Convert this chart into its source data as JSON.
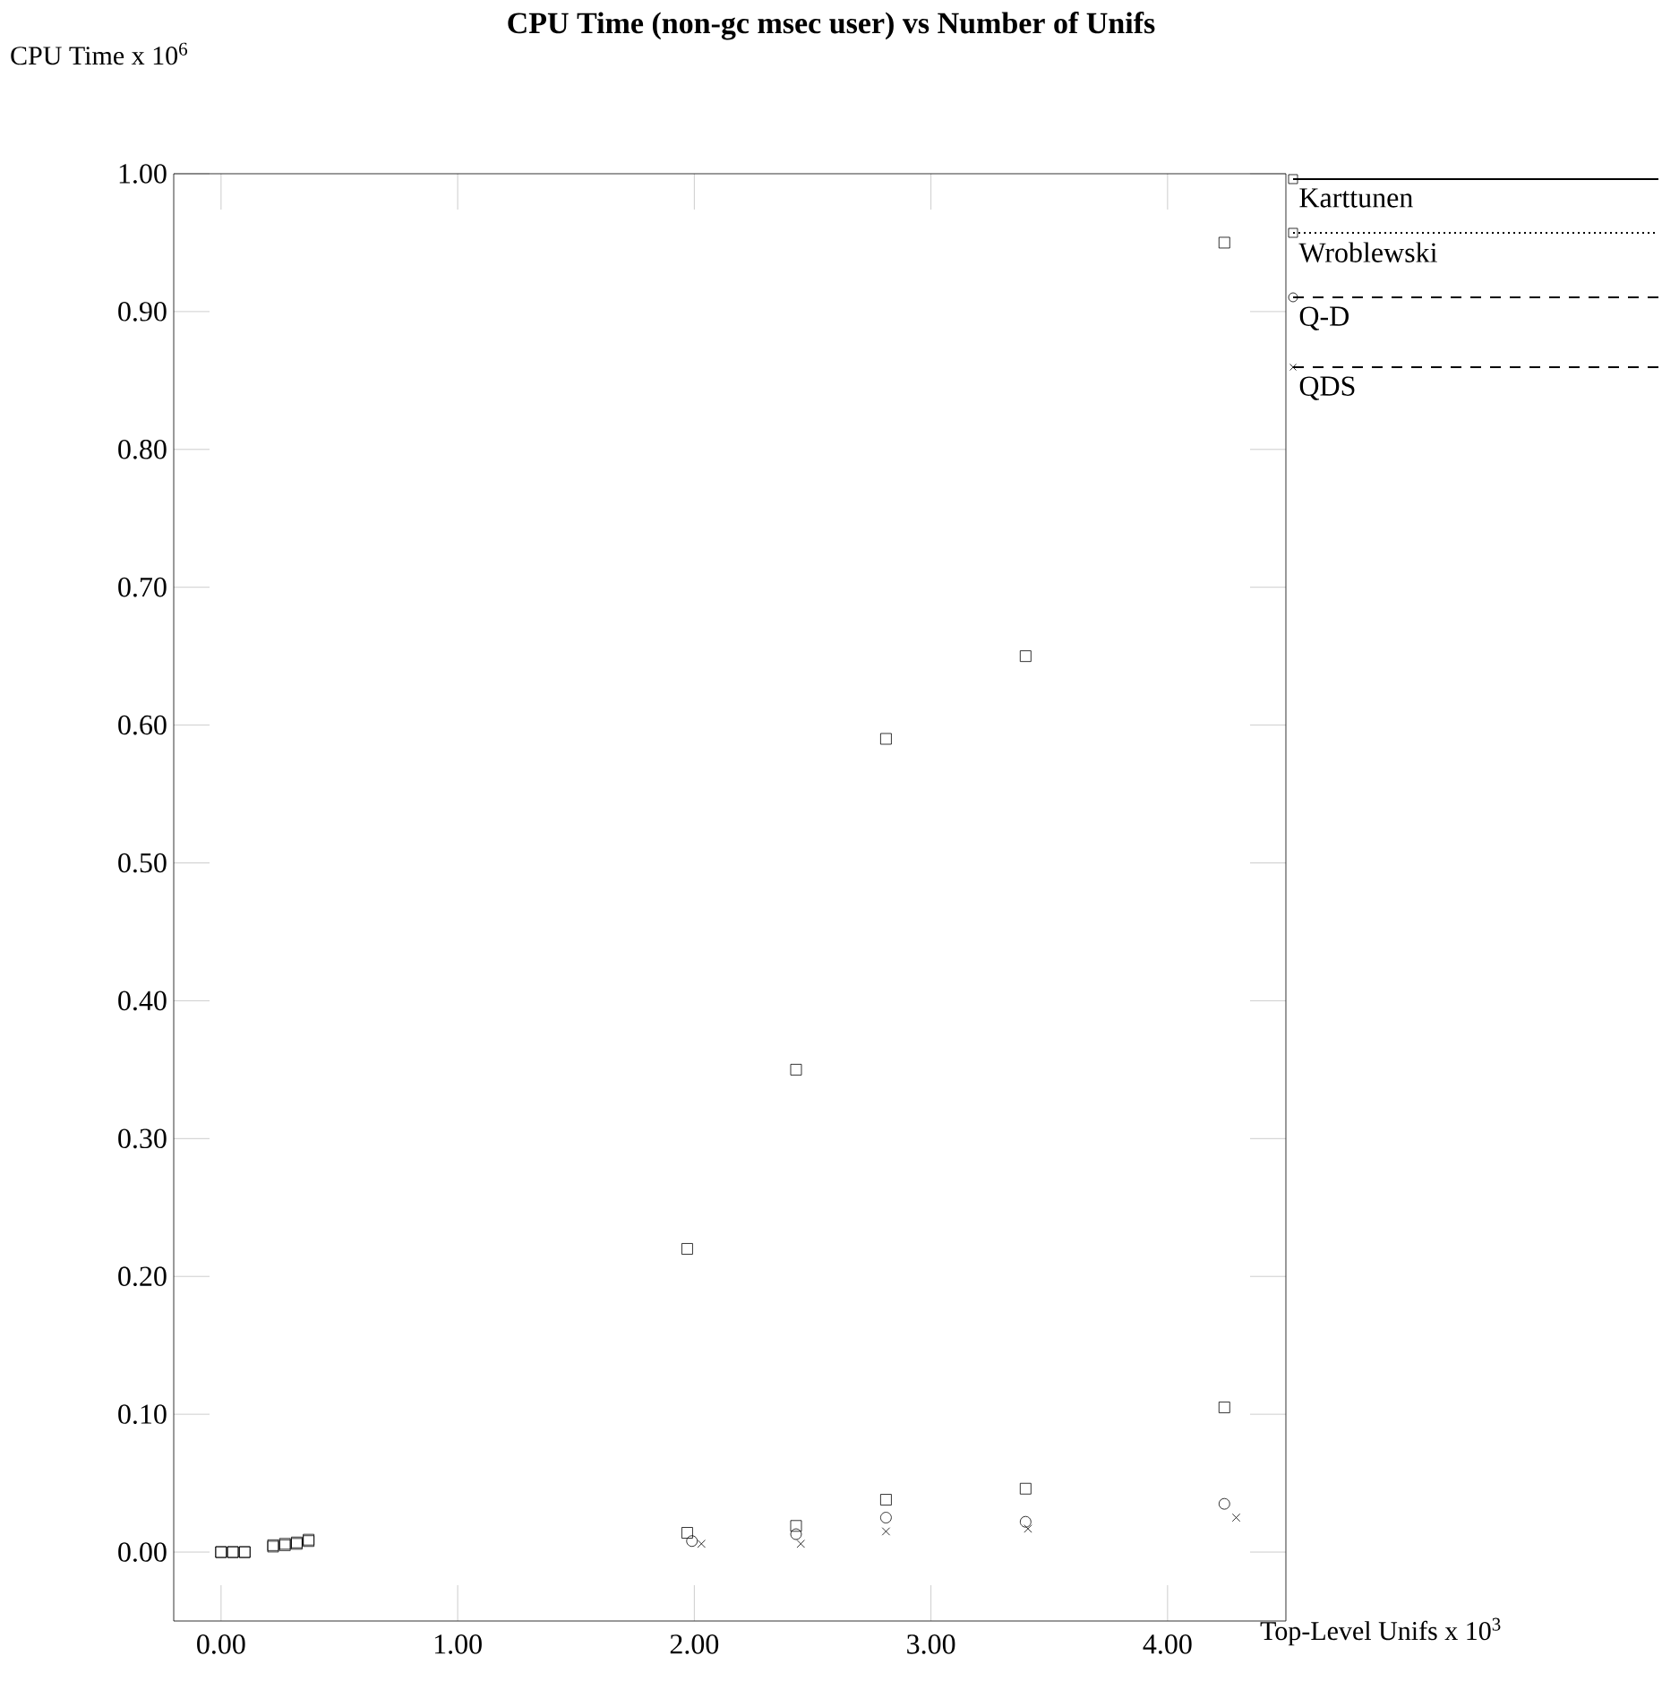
{
  "chart_data": {
    "type": "scatter",
    "title": "CPU Time (non-gc msec user) vs Number of Unifs",
    "xlabel": "Top-Level Unifs x 10$^{3}$",
    "ylabel": "CPU Time x 10$^{6}$",
    "xlim": [
      -0.2,
      4.5
    ],
    "ylim": [
      -0.05,
      1.0
    ],
    "xticks": [
      {
        "value": 0,
        "label": "0.00"
      },
      {
        "value": 1,
        "label": "1.00"
      },
      {
        "value": 2,
        "label": "2.00"
      },
      {
        "value": 3,
        "label": "3.00"
      },
      {
        "value": 4,
        "label": "4.00"
      }
    ],
    "yticks": [
      {
        "value": 0,
        "label": "0.00"
      },
      {
        "value": 0.1,
        "label": "0.10"
      },
      {
        "value": 0.2,
        "label": "0.20"
      },
      {
        "value": 0.3,
        "label": "0.30"
      },
      {
        "value": 0.4,
        "label": "0.40"
      },
      {
        "value": 0.5,
        "label": "0.50"
      },
      {
        "value": 0.6,
        "label": "0.60"
      },
      {
        "value": 0.7,
        "label": "0.70"
      },
      {
        "value": 0.8,
        "label": "0.80"
      },
      {
        "value": 0.9,
        "label": "0.90"
      },
      {
        "value": 1.0,
        "label": "1.00"
      }
    ],
    "grid": false,
    "legend": "right",
    "series": [
      {
        "name": "Karttunen",
        "color": "#000000",
        "marker": "square",
        "line_style": "solid",
        "x": [
          0.0,
          0.05,
          0.1,
          0.22,
          0.27,
          0.32,
          0.37,
          1.97,
          2.43,
          2.81,
          3.4,
          4.24
        ],
        "values": [
          0.0,
          0.0,
          0.0,
          0.005,
          0.006,
          0.007,
          0.009,
          0.22,
          0.35,
          0.59,
          0.65,
          0.95
        ]
      },
      {
        "name": "Wroblewski",
        "color": "#000000",
        "marker": "square",
        "line_style": "dotted",
        "x": [
          0.0,
          0.05,
          0.1,
          0.22,
          0.27,
          0.32,
          0.37,
          1.97,
          2.43,
          2.81,
          3.4,
          4.24
        ],
        "values": [
          0.0,
          0.0,
          0.0,
          0.004,
          0.005,
          0.006,
          0.008,
          0.014,
          0.019,
          0.038,
          0.046,
          0.105
        ]
      },
      {
        "name": "Q-D",
        "color": "#000000",
        "marker": "circle",
        "line_style": "dashed",
        "x": [
          1.99,
          2.43,
          2.81,
          3.4,
          4.24
        ],
        "values": [
          0.008,
          0.013,
          0.025,
          0.022,
          0.035
        ]
      },
      {
        "name": "QDS",
        "color": "#000000",
        "marker": "cross",
        "line_style": "dashed",
        "x": [
          2.03,
          2.45,
          2.81,
          3.41,
          4.29
        ],
        "values": [
          0.006,
          0.006,
          0.015,
          0.017,
          0.025
        ]
      }
    ]
  }
}
